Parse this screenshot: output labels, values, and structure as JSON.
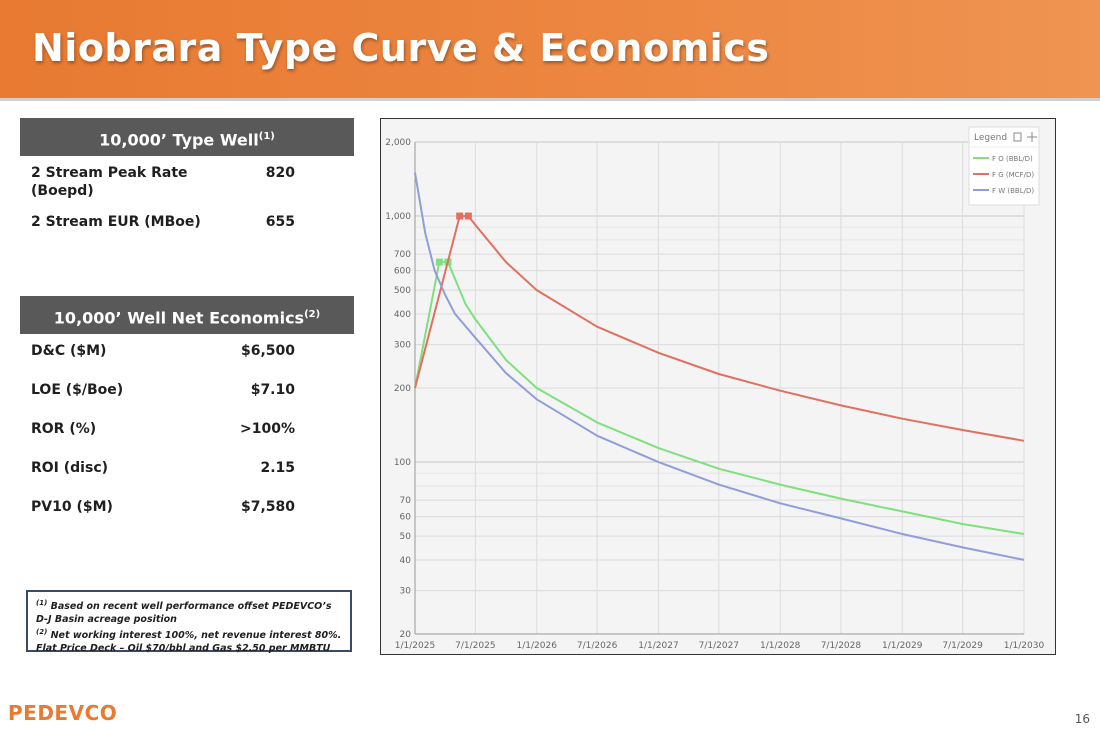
{
  "title": "Niobrara Type Curve & Economics",
  "type_well": {
    "header": "10,000’ Type Well",
    "header_note": "(1)",
    "rows": [
      {
        "label": "2 Stream Peak Rate (Boepd)",
        "value": "820"
      },
      {
        "label": "2 Stream EUR (MBoe)",
        "value": "655"
      }
    ]
  },
  "economics": {
    "header": "10,000’ Well Net Economics",
    "header_note": "(2)",
    "rows": [
      {
        "label": "D&C ($M)",
        "value": "$6,500"
      },
      {
        "label": "LOE ($/Boe)",
        "value": "$7.10"
      },
      {
        "label": "ROR (%)",
        "value": ">100%"
      },
      {
        "label": "ROI (disc)",
        "value": "2.15"
      },
      {
        "label": "PV10 ($M)",
        "value": "$7,580"
      }
    ]
  },
  "footnotes": {
    "note1_mark": "(1)",
    "note1": "Based on recent well performance offset PEDEVCO’s D-J Basin acreage position",
    "note2_mark": "(2)",
    "note2": "Net working interest 100%, net revenue interest 80%. Flat Price Deck – Oil $70/bbl and Gas $2.50 per MMBTU"
  },
  "logo": "PEDEVCO",
  "page_number": "16",
  "chart_data": {
    "type": "line",
    "title": "",
    "xlabel": "",
    "ylabel": "",
    "y_scale": "log",
    "ylim": [
      20,
      2000
    ],
    "y_ticks": [
      {
        "value": 2000,
        "label": "2,000"
      },
      {
        "value": 1000,
        "label": "1,000"
      },
      {
        "value": 700,
        "label": "700"
      },
      {
        "value": 600,
        "label": "600"
      },
      {
        "value": 500,
        "label": "500"
      },
      {
        "value": 400,
        "label": "400"
      },
      {
        "value": 300,
        "label": "300"
      },
      {
        "value": 200,
        "label": "200"
      },
      {
        "value": 100,
        "label": "100"
      },
      {
        "value": 70,
        "label": "70"
      },
      {
        "value": 60,
        "label": "60"
      },
      {
        "value": 50,
        "label": "50"
      },
      {
        "value": 40,
        "label": "40"
      },
      {
        "value": 30,
        "label": "30"
      },
      {
        "value": 20,
        "label": "20"
      }
    ],
    "x_ticks": [
      "1/1/2025",
      "7/1/2025",
      "1/1/2026",
      "7/1/2026",
      "1/1/2027",
      "7/1/2027",
      "1/1/2028",
      "7/1/2028",
      "1/1/2029",
      "7/1/2029",
      "1/1/2030"
    ],
    "grid": true,
    "legend": {
      "title": "Legend",
      "position": "top-right",
      "entries": [
        "F O (BBL/D)",
        "F G (MCF/D)",
        "F W (BBL/D)"
      ]
    },
    "series": [
      {
        "name": "F O (BBL/D)",
        "color": "#7ee07e",
        "markers": [
          [
            "2025-03-15",
            650
          ],
          [
            "2025-04-10",
            650
          ]
        ],
        "points": [
          [
            "2025-01-01",
            200
          ],
          [
            "2025-03-15",
            650
          ],
          [
            "2025-04-10",
            650
          ],
          [
            "2025-06-01",
            440
          ],
          [
            "2025-07-01",
            380
          ],
          [
            "2025-10-01",
            260
          ],
          [
            "2026-01-01",
            200
          ],
          [
            "2026-07-01",
            145
          ],
          [
            "2027-01-01",
            114
          ],
          [
            "2027-07-01",
            94
          ],
          [
            "2028-01-01",
            81
          ],
          [
            "2028-07-01",
            71
          ],
          [
            "2029-01-01",
            63
          ],
          [
            "2029-07-01",
            56
          ],
          [
            "2030-01-01",
            51
          ]
        ]
      },
      {
        "name": "F G (MCF/D)",
        "color": "#e07060",
        "markers": [
          [
            "2025-05-15",
            1000
          ],
          [
            "2025-06-10",
            1000
          ]
        ],
        "points": [
          [
            "2025-01-01",
            200
          ],
          [
            "2025-05-15",
            1000
          ],
          [
            "2025-06-10",
            1000
          ],
          [
            "2025-07-01",
            920
          ],
          [
            "2025-10-01",
            650
          ],
          [
            "2026-01-01",
            500
          ],
          [
            "2026-07-01",
            355
          ],
          [
            "2027-01-01",
            278
          ],
          [
            "2027-07-01",
            228
          ],
          [
            "2028-01-01",
            195
          ],
          [
            "2028-07-01",
            170
          ],
          [
            "2029-01-01",
            150
          ],
          [
            "2029-07-01",
            135
          ],
          [
            "2030-01-01",
            122
          ]
        ]
      },
      {
        "name": "F W (BBL/D)",
        "color": "#8f9ed8",
        "points": [
          [
            "2025-01-01",
            1500
          ],
          [
            "2025-02-01",
            850
          ],
          [
            "2025-03-01",
            600
          ],
          [
            "2025-04-01",
            480
          ],
          [
            "2025-05-01",
            400
          ],
          [
            "2025-07-01",
            320
          ],
          [
            "2025-10-01",
            230
          ],
          [
            "2026-01-01",
            180
          ],
          [
            "2026-07-01",
            128
          ],
          [
            "2027-01-01",
            100
          ],
          [
            "2027-07-01",
            81
          ],
          [
            "2028-01-01",
            68
          ],
          [
            "2028-07-01",
            59
          ],
          [
            "2029-01-01",
            51
          ],
          [
            "2029-07-01",
            45
          ],
          [
            "2030-01-01",
            40
          ]
        ]
      }
    ]
  }
}
